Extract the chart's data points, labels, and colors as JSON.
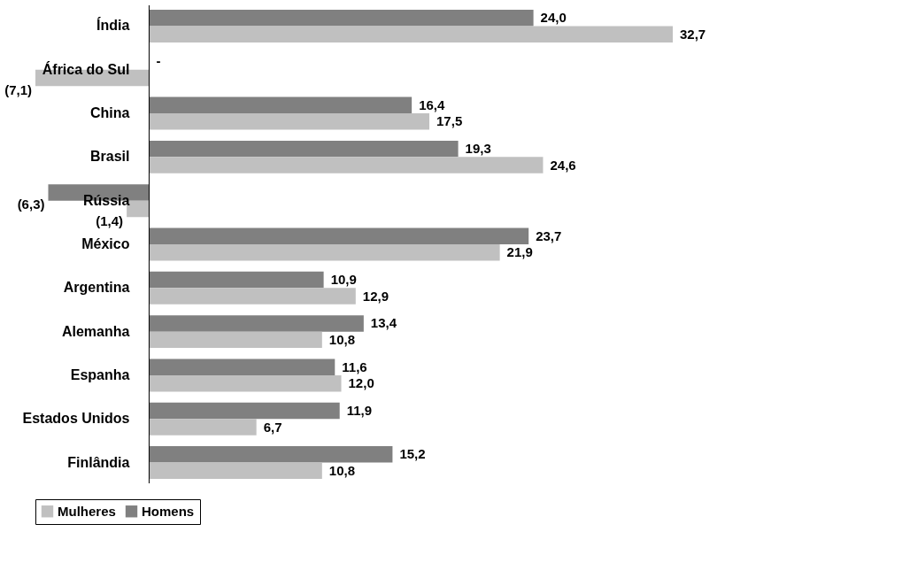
{
  "chart_data": {
    "type": "bar",
    "orientation": "horizontal",
    "categories": [
      "Índia",
      "África do Sul",
      "China",
      "Brasil",
      "Rússia",
      "México",
      "Argentina",
      "Alemanha",
      "Espanha",
      "Estados Unidos",
      "Finlândia"
    ],
    "series": [
      {
        "name": "Homens",
        "color": "#808080",
        "values": [
          24.0,
          null,
          16.4,
          19.3,
          -6.3,
          23.7,
          10.9,
          13.4,
          11.6,
          11.9,
          15.2
        ],
        "value_labels": [
          "24,0",
          "-",
          "16,4",
          "19,3",
          "(6,3)",
          "23,7",
          "10,9",
          "13,4",
          "11,6",
          "11,9",
          "15,2"
        ]
      },
      {
        "name": "Mulheres",
        "color": "#c0c0c0",
        "values": [
          32.7,
          -7.1,
          17.5,
          24.6,
          -1.4,
          21.9,
          12.9,
          10.8,
          12.0,
          6.7,
          10.8
        ],
        "value_labels": [
          "32,7",
          "(7,1)",
          "17,5",
          "24,6",
          "(1,4)",
          "21,9",
          "12,9",
          "10,8",
          "12,0",
          "6,7",
          "10,8"
        ]
      }
    ],
    "legend": "bottom",
    "grid": false
  }
}
